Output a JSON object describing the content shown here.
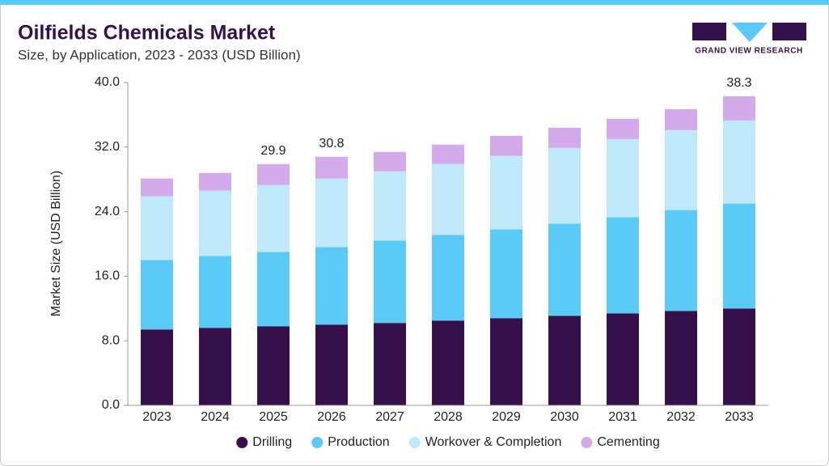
{
  "logo": "GRAND VIEW RESEARCH",
  "chart_data": {
    "type": "stacked-bar",
    "title": "Oilfields Chemicals Market",
    "subtitle": "Size, by Application, 2023 - 2033 (USD Billion)",
    "y_label": "Market Size (USD Billion)",
    "categories": [
      "2023",
      "2024",
      "2025",
      "2026",
      "2027",
      "2028",
      "2029",
      "2030",
      "2031",
      "2032",
      "2033"
    ],
    "series": [
      {
        "name": "Drilling",
        "color": "#36104a",
        "values": [
          9.4,
          9.6,
          9.8,
          10.0,
          10.2,
          10.5,
          10.8,
          11.1,
          11.4,
          11.7,
          12.0
        ]
      },
      {
        "name": "Production",
        "color": "#5bc9f6",
        "values": [
          8.6,
          8.9,
          9.2,
          9.6,
          10.2,
          10.6,
          11.0,
          11.4,
          11.9,
          12.5,
          13.0
        ]
      },
      {
        "name": "Workover & Completion",
        "color": "#bfe9f9",
        "values": [
          7.9,
          8.1,
          8.3,
          8.5,
          8.6,
          8.8,
          9.1,
          9.4,
          9.7,
          9.9,
          10.3
        ]
      },
      {
        "name": "Cementing",
        "color": "#d3aaea",
        "values": [
          2.2,
          2.2,
          2.6,
          2.7,
          2.4,
          2.4,
          2.5,
          2.5,
          2.5,
          2.6,
          3.0
        ]
      }
    ],
    "totals": [
      null,
      null,
      29.9,
      30.8,
      null,
      null,
      null,
      null,
      null,
      null,
      38.3
    ],
    "ylim": [
      0,
      40
    ],
    "yticks": [
      {
        "value": 0,
        "label": "0.0"
      },
      {
        "value": 8,
        "label": "8.0"
      },
      {
        "value": 16,
        "label": "16.0"
      },
      {
        "value": 24,
        "label": "24.0"
      },
      {
        "value": 32,
        "label": "32.0"
      },
      {
        "value": 40,
        "label": "40.0"
      }
    ]
  }
}
